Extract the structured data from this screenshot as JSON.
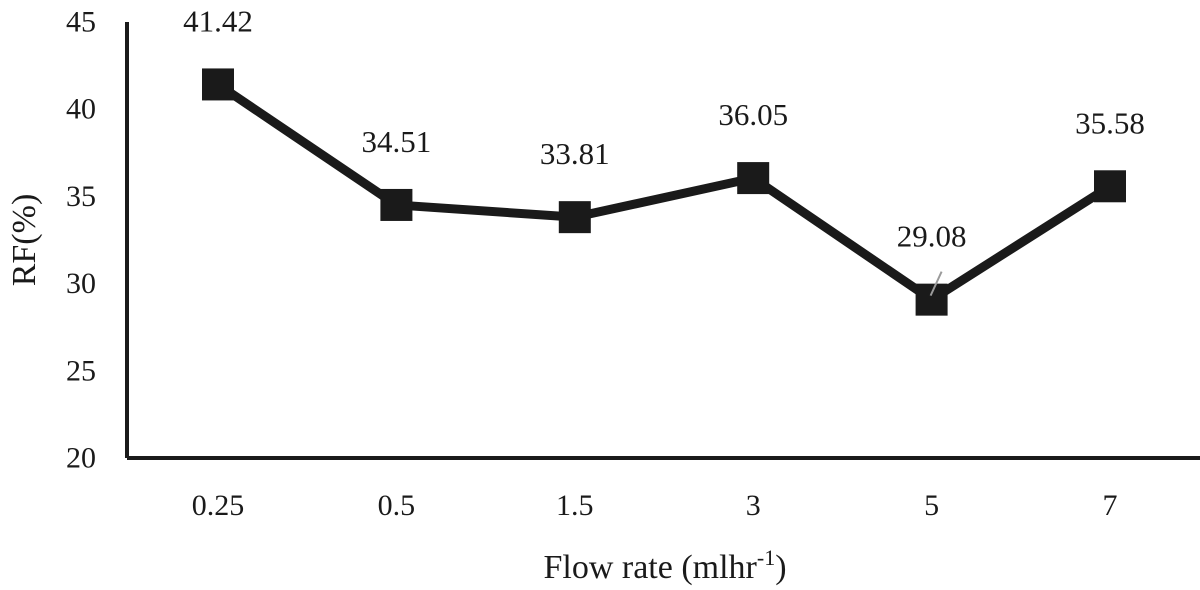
{
  "chart_data": {
    "type": "line",
    "categories": [
      "0.25",
      "0.5",
      "1.5",
      "3",
      "5",
      "7"
    ],
    "series": [
      {
        "values": [
          41.42,
          34.51,
          33.81,
          36.05,
          29.08,
          35.58
        ]
      }
    ],
    "data_labels": [
      "41.42",
      "34.51",
      "33.81",
      "36.05",
      "29.08",
      "35.58"
    ],
    "ylabel": "RF(%)",
    "xlabel": {
      "text": "Flow rate (mlhr",
      "superscript": "-1",
      "suffix": ")"
    },
    "ylim": [
      20,
      45
    ],
    "yticks": [
      20,
      25,
      30,
      35,
      40,
      45
    ],
    "grid": false,
    "legend": "none",
    "colors": {
      "series": "#1a1a1a",
      "axis": "#1a1a1a"
    }
  }
}
